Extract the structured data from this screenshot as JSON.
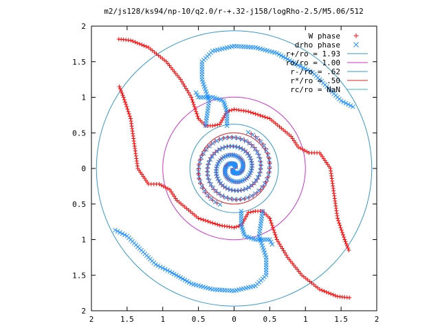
{
  "chart_data": {
    "type": "scatter",
    "title": "m2/js128/ks94/np-10/q2.0/r-+.32-j158/logRho-2.5/M5.06/512",
    "xlim": [
      -2,
      2
    ],
    "ylim": [
      -2,
      2
    ],
    "xticks": [
      -2,
      -1.5,
      -1,
      -0.5,
      0,
      0.5,
      1,
      1.5,
      2
    ],
    "yticks": [
      -2,
      -1.5,
      -1,
      -0.5,
      0,
      0.5,
      1,
      1.5,
      2
    ],
    "xtick_labels": [
      "2",
      "1.5",
      "1",
      "0.5",
      "0",
      "0.5",
      "1",
      "1.5",
      "2"
    ],
    "ytick_labels": [
      "2",
      "1.5",
      "1",
      "0.5",
      "0",
      "0.5",
      "1",
      "1.5",
      "2"
    ],
    "grid": false,
    "legend_position": "top-right",
    "legend": [
      {
        "label": "W phase",
        "color": "#ff0000",
        "marker": "plus"
      },
      {
        "label": "drho phase",
        "color": "#1e90ff",
        "marker": "cross"
      },
      {
        "label": "r+/ro = 1.93",
        "color": "#3399cc",
        "marker": "line"
      },
      {
        "label": "ro/ro = 1.00",
        "color": "#cc33cc",
        "marker": "line"
      },
      {
        "label": "r-/ro = .62",
        "color": "#3399cc",
        "marker": "line"
      },
      {
        "label": "r*/ro = .50",
        "color": "#dd2222",
        "marker": "line"
      },
      {
        "label": "rc/ro = NaN",
        "color": "#33bbbb",
        "marker": "line"
      }
    ],
    "circles": [
      {
        "name": "r+/ro",
        "r": 1.93,
        "color": "#3399cc"
      },
      {
        "name": "ro/ro",
        "r": 1.0,
        "color": "#cc33cc"
      },
      {
        "name": "r-/ro",
        "r": 0.62,
        "color": "#3399cc"
      },
      {
        "name": "r*/ro",
        "r": 0.5,
        "color": "#dd2222"
      }
    ],
    "series": [
      {
        "name": "W phase",
        "color": "#ff0000",
        "marker": "plus",
        "paths": [
          [
            [
              -0.5,
              0.7
            ],
            [
              -0.6,
              1.0
            ],
            [
              -0.75,
              1.25
            ],
            [
              -0.95,
              1.5
            ],
            [
              -1.2,
              1.7
            ],
            [
              -1.45,
              1.8
            ],
            [
              -1.65,
              1.82
            ]
          ],
          [
            [
              -0.5,
              0.7
            ],
            [
              -0.4,
              0.6
            ],
            [
              -0.3,
              0.6
            ],
            [
              -0.2,
              0.62
            ],
            [
              -0.1,
              0.8
            ],
            [
              0.0,
              0.83
            ],
            [
              0.2,
              0.8
            ],
            [
              0.5,
              0.7
            ],
            [
              0.8,
              0.45
            ],
            [
              0.9,
              0.3
            ],
            [
              1.05,
              0.22
            ],
            [
              1.2,
              0.22
            ],
            [
              1.35,
              0.0
            ],
            [
              1.4,
              -0.35
            ],
            [
              1.45,
              -0.7
            ],
            [
              1.55,
              -1.0
            ],
            [
              1.62,
              -1.18
            ]
          ],
          [
            [
              0.5,
              -0.7
            ],
            [
              0.6,
              -1.0
            ],
            [
              0.75,
              -1.25
            ],
            [
              0.95,
              -1.5
            ],
            [
              1.2,
              -1.7
            ],
            [
              1.45,
              -1.8
            ],
            [
              1.65,
              -1.82
            ]
          ],
          [
            [
              0.5,
              -0.7
            ],
            [
              0.4,
              -0.6
            ],
            [
              0.3,
              -0.6
            ],
            [
              0.2,
              -0.62
            ],
            [
              0.1,
              -0.8
            ],
            [
              0.0,
              -0.83
            ],
            [
              -0.2,
              -0.8
            ],
            [
              -0.5,
              -0.7
            ],
            [
              -0.8,
              -0.45
            ],
            [
              -0.9,
              -0.3
            ],
            [
              -1.05,
              -0.22
            ],
            [
              -1.2,
              -0.22
            ],
            [
              -1.35,
              0.0
            ],
            [
              -1.4,
              0.35
            ],
            [
              -1.45,
              0.7
            ],
            [
              -1.55,
              1.0
            ],
            [
              -1.62,
              1.18
            ]
          ]
        ]
      },
      {
        "name": "drho phase",
        "color": "#1e90ff",
        "marker": "cross",
        "paths": [
          [
            [
              -0.4,
              0.6
            ],
            [
              -0.35,
              0.95
            ],
            [
              -0.45,
              1.25
            ],
            [
              -0.45,
              1.5
            ],
            [
              -0.3,
              1.65
            ],
            [
              0.0,
              1.72
            ],
            [
              0.3,
              1.7
            ],
            [
              0.6,
              1.62
            ],
            [
              0.9,
              1.45
            ],
            [
              1.1,
              1.35
            ],
            [
              1.3,
              1.15
            ],
            [
              1.5,
              0.95
            ],
            [
              1.7,
              0.85
            ]
          ],
          [
            [
              -0.1,
              0.6
            ],
            [
              -0.1,
              0.8
            ],
            [
              -0.15,
              0.95
            ],
            [
              -0.3,
              1.0
            ],
            [
              -0.5,
              1.0
            ],
            [
              -0.55,
              1.1
            ]
          ],
          [
            [
              0.4,
              -0.6
            ],
            [
              0.35,
              -0.95
            ],
            [
              0.45,
              -1.25
            ],
            [
              0.45,
              -1.5
            ],
            [
              0.3,
              -1.65
            ],
            [
              0.0,
              -1.72
            ],
            [
              -0.3,
              -1.7
            ],
            [
              -0.6,
              -1.62
            ],
            [
              -0.9,
              -1.45
            ],
            [
              -1.1,
              -1.35
            ],
            [
              -1.3,
              -1.15
            ],
            [
              -1.5,
              -0.95
            ],
            [
              -1.7,
              -0.85
            ]
          ],
          [
            [
              0.1,
              -0.6
            ],
            [
              0.1,
              -0.8
            ],
            [
              0.15,
              -0.95
            ],
            [
              0.3,
              -1.0
            ],
            [
              0.5,
              -1.0
            ],
            [
              0.55,
              -1.1
            ]
          ]
        ]
      }
    ],
    "spiral": {
      "turns": 2.2,
      "r_max": 0.55
    }
  }
}
